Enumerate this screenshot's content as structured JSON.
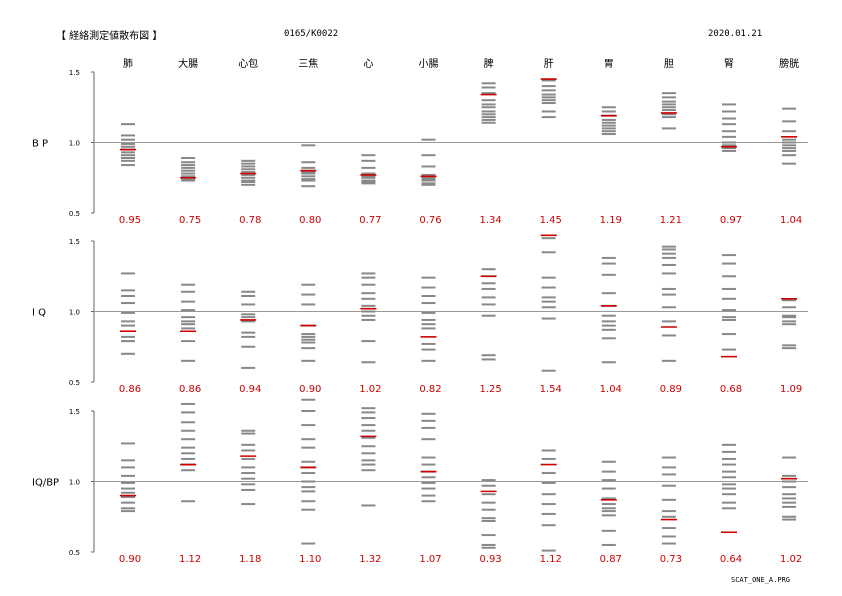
{
  "header": {
    "title": "【 経絡測定値散布図 】",
    "record_id": "0165/K0022",
    "date": "2020.01.21"
  },
  "footer": {
    "program": "SCAT_ONE_A.PRG"
  },
  "colors": {
    "gridline": "#999999",
    "mark": "#888888",
    "value_red": "#cc0000",
    "text": "#000000"
  },
  "chart_data": {
    "type": "scatter",
    "categories": [
      "肺",
      "大腸",
      "心包",
      "三焦",
      "心",
      "小腸",
      "脾",
      "肝",
      "胃",
      "胆",
      "腎",
      "膀胱"
    ],
    "panels": [
      {
        "label": "B P",
        "ylim": [
          0.5,
          1.5
        ],
        "yticks": [
          "1.5",
          "1.0",
          "0.5"
        ],
        "reference": 1.0,
        "distribution": [
          [
            1.13,
            1.05,
            1.02,
            0.99,
            0.97,
            0.95,
            0.93,
            0.91,
            0.89,
            0.87,
            0.84
          ],
          [
            0.89,
            0.86,
            0.84,
            0.82,
            0.8,
            0.78,
            0.76,
            0.74,
            0.73
          ],
          [
            0.87,
            0.85,
            0.83,
            0.81,
            0.79,
            0.77,
            0.75,
            0.73,
            0.72,
            0.7
          ],
          [
            0.98,
            0.86,
            0.82,
            0.8,
            0.79,
            0.78,
            0.76,
            0.74,
            0.73,
            0.69
          ],
          [
            0.91,
            0.87,
            0.82,
            0.78,
            0.77,
            0.76,
            0.75,
            0.73,
            0.72,
            0.71
          ],
          [
            1.02,
            0.91,
            0.83,
            0.77,
            0.75,
            0.74,
            0.73,
            0.71,
            0.7
          ],
          [
            1.42,
            1.39,
            1.35,
            1.3,
            1.27,
            1.25,
            1.22,
            1.2,
            1.18,
            1.16,
            1.14
          ],
          [
            1.44,
            1.4,
            1.37,
            1.34,
            1.32,
            1.3,
            1.28,
            1.22,
            1.18
          ],
          [
            1.25,
            1.22,
            1.19,
            1.16,
            1.14,
            1.12,
            1.1,
            1.08,
            1.06
          ],
          [
            1.35,
            1.32,
            1.29,
            1.27,
            1.25,
            1.23,
            1.2,
            1.18,
            1.1
          ],
          [
            1.27,
            1.22,
            1.17,
            1.13,
            1.08,
            1.04,
            1.0,
            0.98,
            0.96,
            0.94
          ],
          [
            1.24,
            1.15,
            1.08,
            1.02,
            1.0,
            0.98,
            0.96,
            0.94,
            0.91,
            0.85
          ]
        ],
        "values": [
          0.95,
          0.75,
          0.78,
          0.8,
          0.77,
          0.76,
          1.34,
          1.45,
          1.19,
          1.21,
          0.97,
          1.04
        ],
        "value_labels": [
          "0.95",
          "0.75",
          "0.78",
          "0.80",
          "0.77",
          "0.76",
          "1.34",
          "1.45",
          "1.19",
          "1.21",
          "0.97",
          "1.04"
        ]
      },
      {
        "label": "I Q",
        "ylim": [
          0.5,
          1.5
        ],
        "yticks": [
          "1.5",
          "1.0",
          "0.5"
        ],
        "reference": 1.0,
        "distribution": [
          [
            1.27,
            1.15,
            1.11,
            1.06,
            0.99,
            0.93,
            0.9,
            0.82,
            0.79,
            0.7
          ],
          [
            1.19,
            1.14,
            1.07,
            1.01,
            0.96,
            0.93,
            0.91,
            0.88,
            0.79,
            0.65
          ],
          [
            1.14,
            1.11,
            1.05,
            0.98,
            0.96,
            0.93,
            0.85,
            0.82,
            0.75,
            0.6
          ],
          [
            1.19,
            1.12,
            1.05,
            0.9,
            0.84,
            0.82,
            0.8,
            0.78,
            0.74,
            0.65
          ],
          [
            1.27,
            1.24,
            1.19,
            1.13,
            1.09,
            1.04,
            1.0,
            0.97,
            0.94,
            0.79,
            0.64
          ],
          [
            1.24,
            1.17,
            1.11,
            1.06,
            0.99,
            0.94,
            0.91,
            0.88,
            0.77,
            0.73,
            0.65
          ],
          [
            1.3,
            1.25,
            1.2,
            1.16,
            1.1,
            1.05,
            0.97,
            0.69,
            0.66
          ],
          [
            1.52,
            1.42,
            1.24,
            1.17,
            1.1,
            1.07,
            1.03,
            0.95,
            0.58
          ],
          [
            1.38,
            1.34,
            1.26,
            1.13,
            1.04,
            0.97,
            0.93,
            0.9,
            0.87,
            0.81,
            0.64
          ],
          [
            1.46,
            1.44,
            1.41,
            1.38,
            1.33,
            1.27,
            1.16,
            1.12,
            1.03,
            0.93,
            0.83,
            0.65
          ],
          [
            1.4,
            1.34,
            1.25,
            1.16,
            1.09,
            1.01,
            0.96,
            0.94,
            0.84,
            0.73
          ],
          [
            1.08,
            1.03,
            0.97,
            0.96,
            0.93,
            0.91,
            0.76,
            0.74
          ]
        ],
        "values": [
          0.86,
          0.86,
          0.94,
          0.9,
          1.02,
          0.82,
          1.25,
          1.54,
          1.04,
          0.89,
          0.68,
          1.09
        ],
        "value_labels": [
          "0.86",
          "0.86",
          "0.94",
          "0.90",
          "1.02",
          "0.82",
          "1.25",
          "1.54",
          "1.04",
          "0.89",
          "0.68",
          "1.09"
        ]
      },
      {
        "label": "IQ/BP",
        "ylim": [
          0.5,
          1.5
        ],
        "yticks": [
          "1.5",
          "1.0",
          "0.5"
        ],
        "reference": 1.0,
        "distribution": [
          [
            1.27,
            1.15,
            1.1,
            1.04,
            0.99,
            0.95,
            0.92,
            0.89,
            0.85,
            0.81,
            0.79
          ],
          [
            1.55,
            1.49,
            1.42,
            1.36,
            1.3,
            1.24,
            1.2,
            1.16,
            1.12,
            1.08,
            0.86
          ],
          [
            1.36,
            1.34,
            1.26,
            1.22,
            1.16,
            1.1,
            1.06,
            1.02,
            0.98,
            0.94,
            0.84
          ],
          [
            1.58,
            1.5,
            1.4,
            1.3,
            1.24,
            1.14,
            1.1,
            1.06,
            1.0,
            0.96,
            0.93,
            0.86,
            0.8,
            0.56
          ],
          [
            1.52,
            1.49,
            1.45,
            1.4,
            1.36,
            1.31,
            1.25,
            1.2,
            1.15,
            1.12,
            1.08,
            0.83
          ],
          [
            1.48,
            1.43,
            1.38,
            1.3,
            1.17,
            1.12,
            1.07,
            1.03,
            0.99,
            0.95,
            0.9,
            0.86
          ],
          [
            1.01,
            0.97,
            0.91,
            0.85,
            0.8,
            0.74,
            0.72,
            0.62,
            0.55,
            0.53
          ],
          [
            1.22,
            1.16,
            1.06,
            0.99,
            0.91,
            0.84,
            0.77,
            0.69,
            0.51
          ],
          [
            1.14,
            1.07,
            1.01,
            0.95,
            0.88,
            0.84,
            0.81,
            0.79,
            0.76,
            0.65,
            0.55
          ],
          [
            1.17,
            1.1,
            1.05,
            0.97,
            0.87,
            0.79,
            0.75,
            0.67,
            0.61,
            0.56
          ],
          [
            1.26,
            1.21,
            1.16,
            1.12,
            1.07,
            1.03,
            0.98,
            0.95,
            0.91,
            0.85,
            0.81
          ],
          [
            1.17,
            1.04,
            1.0,
            0.96,
            0.91,
            0.88,
            0.85,
            0.82,
            0.75,
            0.73
          ]
        ],
        "values": [
          0.9,
          1.12,
          1.18,
          1.1,
          1.32,
          1.07,
          0.93,
          1.12,
          0.87,
          0.73,
          0.64,
          1.02
        ],
        "value_labels": [
          "0.90",
          "1.12",
          "1.18",
          "1.10",
          "1.32",
          "1.07",
          "0.93",
          "1.12",
          "0.87",
          "0.73",
          "0.64",
          "1.02"
        ]
      }
    ]
  }
}
